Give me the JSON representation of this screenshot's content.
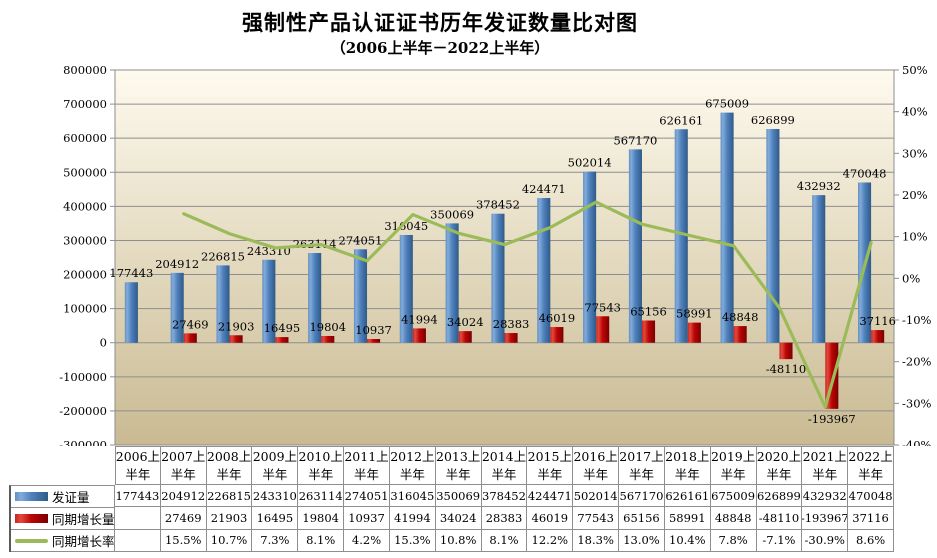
{
  "title": "强制性产品认证证书历年发证数量比对图",
  "subtitle": "（2006上半年－2022上半年）",
  "chart_data": {
    "type": "combo-bar-line",
    "categories": [
      "2006上半年",
      "2007上半年",
      "2008上半年",
      "2009上半年",
      "2010上半年",
      "2011上半年",
      "2012上半年",
      "2013上半年",
      "2014上半年",
      "2015上半年",
      "2016上半年",
      "2017上半年",
      "2018上半年",
      "2019上半年",
      "2020上半年",
      "2021上半年",
      "2022上半年"
    ],
    "series": [
      {
        "name": "发证量",
        "type": "bar",
        "axis": "left",
        "color": "blue",
        "values": [
          177443,
          204912,
          226815,
          243310,
          263114,
          274051,
          316045,
          350069,
          378452,
          424471,
          502014,
          567170,
          626161,
          675009,
          626899,
          432932,
          470048
        ]
      },
      {
        "name": "同期增长量",
        "type": "bar",
        "axis": "left",
        "color": "red",
        "values": [
          null,
          27469,
          21903,
          16495,
          19804,
          10937,
          41994,
          34024,
          28383,
          46019,
          77543,
          65156,
          58991,
          48848,
          -48110,
          -193967,
          37116
        ]
      },
      {
        "name": "同期增长率",
        "type": "line",
        "axis": "right",
        "color": "green",
        "unit": "%",
        "values": [
          null,
          15.5,
          10.7,
          7.3,
          8.1,
          4.2,
          15.3,
          10.8,
          8.1,
          12.2,
          18.3,
          13.0,
          10.4,
          7.8,
          -7.1,
          -30.9,
          8.6
        ]
      }
    ],
    "left_axis": {
      "min": -300000,
      "max": 800000,
      "step": 100000
    },
    "right_axis": {
      "min": -40,
      "max": 50,
      "step": 10,
      "suffix": "%"
    },
    "grid": "horizontal",
    "data_labels": true,
    "legend_position": "table-left"
  },
  "colors": {
    "bar_blue": "#4F81BD",
    "bar_blue_light": "#82ABD9",
    "bar_blue_edge": "#6290C1",
    "bar_blue_dark": "#2F5A88",
    "bar_red": "#BC0505",
    "bar_red_light": "#E04B3B",
    "bar_red_edge": "#CC2222",
    "bar_red_dark": "#7A0000",
    "line_green": "#9BBB59",
    "grid_line": "#8E8E8E",
    "plot_bg_top": "#FEFAEE",
    "plot_bg_bottom": "#C9BA92",
    "text": "#000000"
  }
}
